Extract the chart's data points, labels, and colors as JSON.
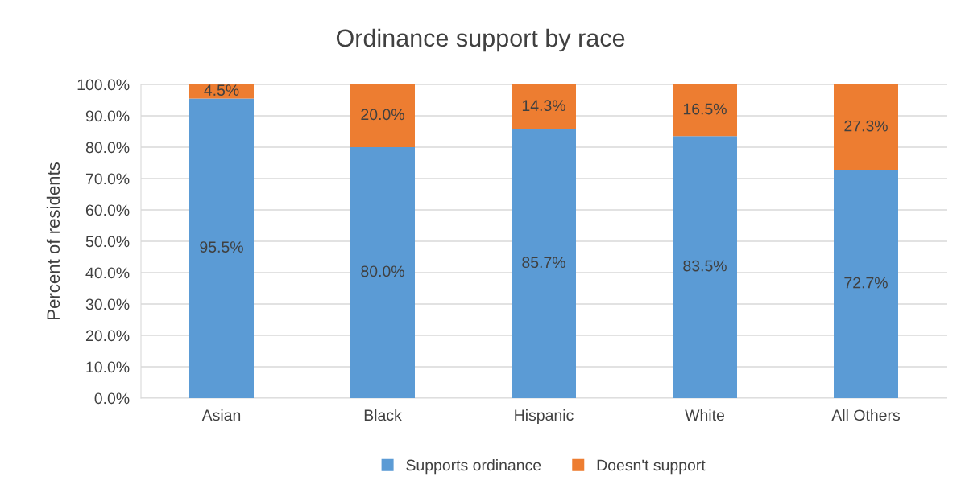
{
  "chart_data": {
    "type": "bar",
    "title": "Ordinance support by race",
    "ylabel": "Percent of residents",
    "categories": [
      "Asian",
      "Black",
      "Hispanic",
      "White",
      "All Others"
    ],
    "stacked": true,
    "series": [
      {
        "name": "Supports ordinance",
        "color": "#5b9bd5",
        "values": [
          95.5,
          80.0,
          85.7,
          83.5,
          72.7
        ],
        "value_labels": [
          "95.5%",
          "80.0%",
          "85.7%",
          "83.5%",
          "72.7%"
        ]
      },
      {
        "name": "Doesn't support",
        "color": "#ed7d31",
        "values": [
          4.5,
          20.0,
          14.3,
          16.5,
          27.3
        ],
        "value_labels": [
          "4.5%",
          "20.0%",
          "14.3%",
          "16.5%",
          "27.3%"
        ]
      }
    ],
    "ylim": [
      0,
      100
    ],
    "yticks": [
      {
        "value": 0,
        "label": "0.0%"
      },
      {
        "value": 10,
        "label": "10.0%"
      },
      {
        "value": 20,
        "label": "20.0%"
      },
      {
        "value": 30,
        "label": "30.0%"
      },
      {
        "value": 40,
        "label": "40.0%"
      },
      {
        "value": 50,
        "label": "50.0%"
      },
      {
        "value": 60,
        "label": "60.0%"
      },
      {
        "value": 70,
        "label": "70.0%"
      },
      {
        "value": 80,
        "label": "80.0%"
      },
      {
        "value": 90,
        "label": "90.0%"
      },
      {
        "value": 100,
        "label": "100.0%"
      }
    ],
    "grid": "y",
    "legend": "bottom"
  }
}
